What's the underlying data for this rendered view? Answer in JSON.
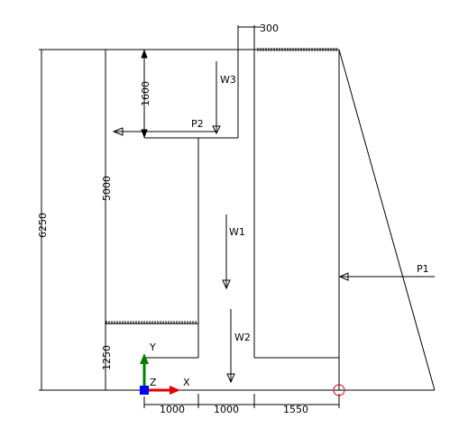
{
  "drawing": {
    "dimensions": {
      "top_300": "300",
      "left_6250": "6250",
      "inner_5000": "5000",
      "inner_1600": "1600",
      "inner_1250": "1250",
      "bottom_1000_a": "1000",
      "bottom_1000_b": "1000",
      "bottom_1550": "1550"
    },
    "loads": {
      "p1": "P1",
      "p2": "P2",
      "w1": "W1",
      "w2": "W2",
      "w3": "W3"
    },
    "ucs": {
      "x_label": "X",
      "y_label": "Y",
      "z_label": "Z"
    },
    "colors": {
      "line": "#000000",
      "ucs_x": "#e00000",
      "ucs_y": "#008000",
      "ucs_origin": "#0000ff",
      "origin_marker": "#e00000"
    }
  }
}
